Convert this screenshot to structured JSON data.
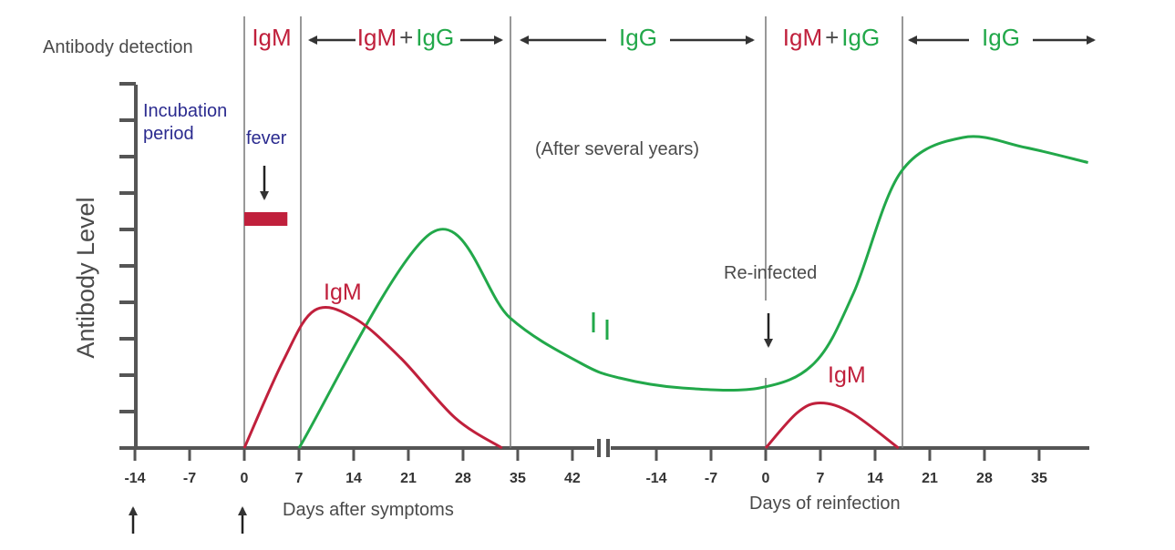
{
  "chart_data": {
    "type": "line",
    "title": "",
    "ylabel": "Antibody  Level",
    "xlabel_primary": "Days after symptoms",
    "xlabel_reinfection": "Days of reinfection",
    "row_label": "Antibody detection",
    "x_ticks_primary": [
      "-14",
      "-7",
      "0",
      "7",
      "14",
      "21",
      "28",
      "35",
      "42"
    ],
    "x_ticks_reinfection": [
      "-14",
      "-7",
      "0",
      "7",
      "14",
      "21",
      "28",
      "35"
    ],
    "phases": [
      {
        "parts": [
          {
            "text": "IgM",
            "color": "red"
          }
        ],
        "arrows": false
      },
      {
        "parts": [
          {
            "text": "IgM",
            "color": "red"
          },
          {
            "text": "+",
            "color": "dark"
          },
          {
            "text": "IgG",
            "color": "green"
          }
        ],
        "arrows": true
      },
      {
        "parts": [
          {
            "text": "IgG",
            "color": "green"
          }
        ],
        "arrows": true
      },
      {
        "parts": [
          {
            "text": "IgM",
            "color": "red"
          },
          {
            "text": "+",
            "color": "dark"
          },
          {
            "text": "IgG",
            "color": "green"
          }
        ],
        "arrows": false
      },
      {
        "parts": [
          {
            "text": "IgG",
            "color": "green"
          }
        ],
        "arrows": true
      }
    ],
    "annotations": {
      "incubation": [
        "Incubation",
        "period"
      ],
      "fever": "fever",
      "after_years": "(After several years)",
      "reinfected": "Re-infected",
      "igm_label_primary": "IgM",
      "igm_label_reinfection": "IgM"
    },
    "series": [
      {
        "name": "IgM (primary)",
        "color": "#c0203c",
        "x_units": "days after symptoms",
        "points": [
          [
            0,
            0
          ],
          [
            5,
            35
          ],
          [
            9,
            55
          ],
          [
            14,
            52
          ],
          [
            20,
            36
          ],
          [
            27,
            12
          ],
          [
            33,
            0
          ]
        ]
      },
      {
        "name": "IgG",
        "color": "#22a84a",
        "x_units": "days (broken axis)",
        "points": [
          [
            7,
            0
          ],
          [
            24,
            86
          ],
          [
            34,
            52
          ],
          [
            43,
            34
          ],
          [
            48,
            28
          ],
          [
            56,
            24
          ],
          [
            66,
            24
          ],
          [
            73,
            34
          ],
          [
            78,
            62
          ],
          [
            84,
            110
          ],
          [
            92,
            124
          ],
          [
            100,
            120
          ],
          [
            108,
            114
          ]
        ]
      },
      {
        "name": "IgM (reinfection)",
        "color": "#c0203c",
        "x_units": "days of reinfection",
        "points": [
          [
            0,
            0
          ],
          [
            4,
            14
          ],
          [
            7,
            18
          ],
          [
            11,
            14
          ],
          [
            17,
            0
          ]
        ]
      }
    ],
    "fever_bar": {
      "from_day": 0,
      "to_day": 4
    },
    "ylim": [
      0,
      140
    ]
  },
  "colors": {
    "red": "#c0203c",
    "green": "#22a84a",
    "blue": "#2b2b8f",
    "dark": "#4a4a4a",
    "axis": "#555555"
  }
}
